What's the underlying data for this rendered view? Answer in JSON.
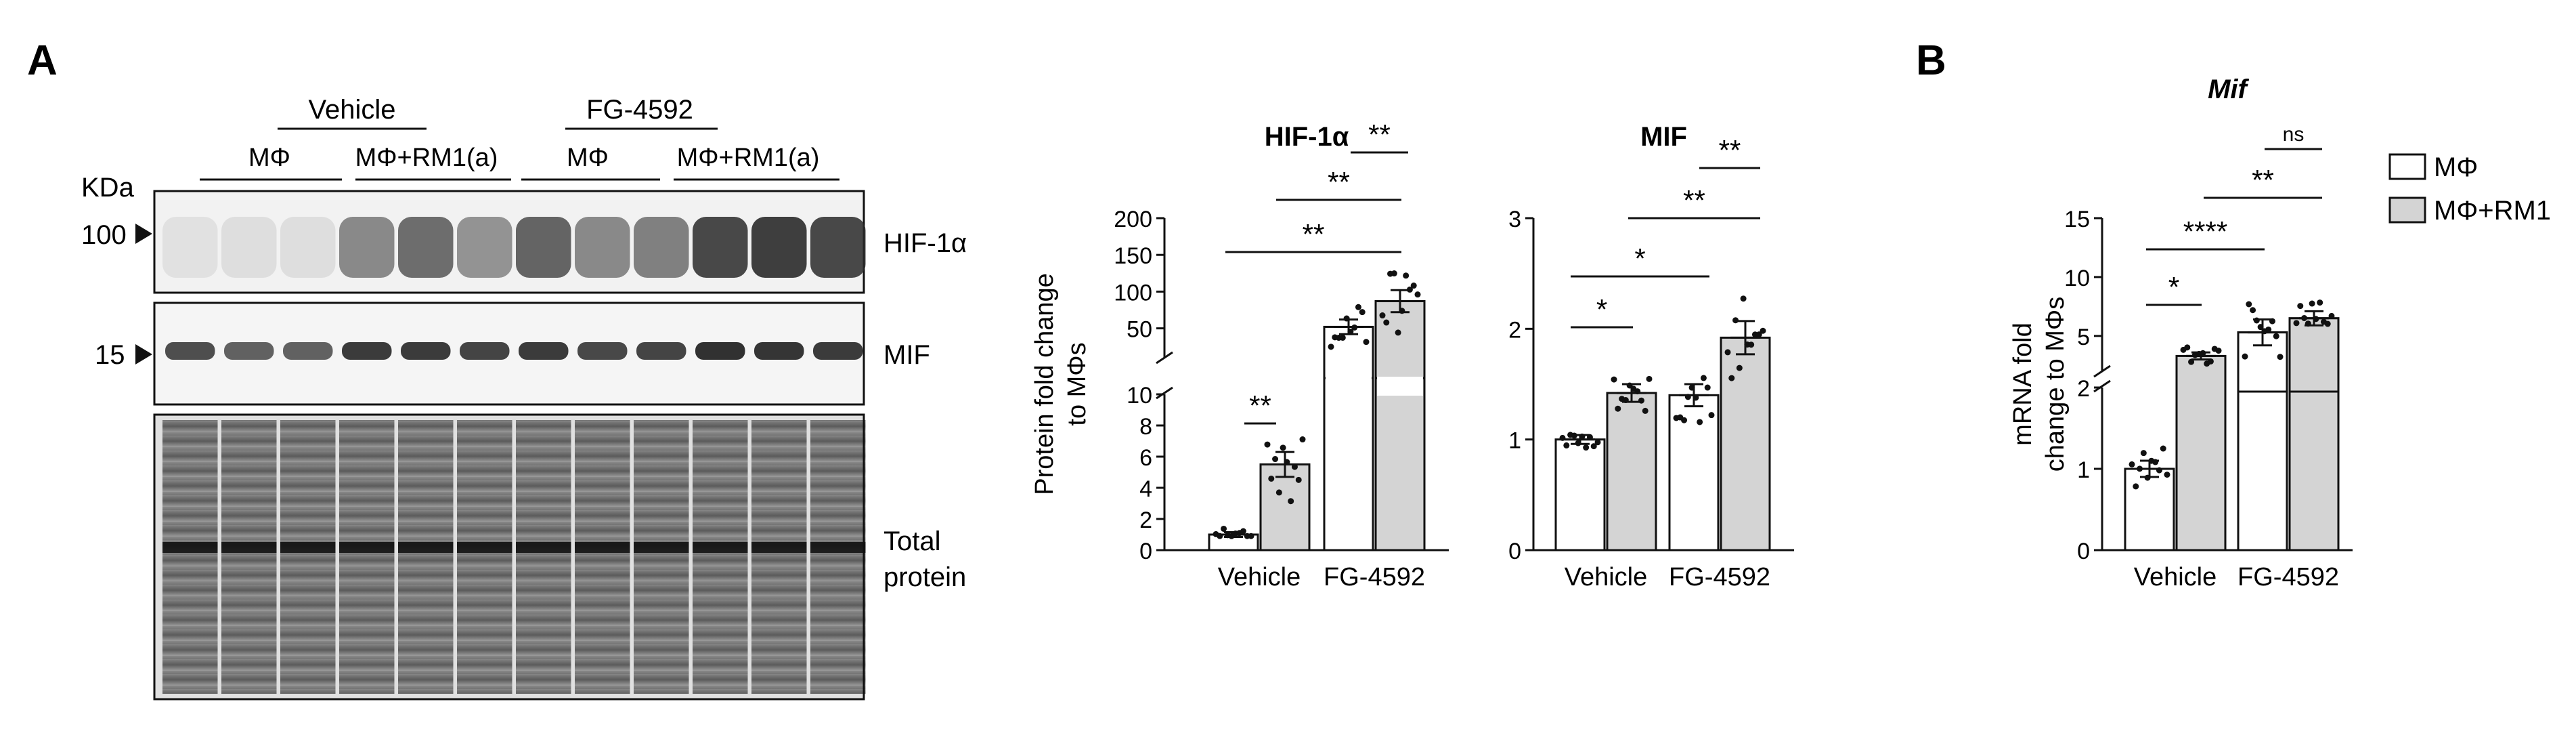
{
  "panel_labels": {
    "a": "A",
    "b": "B"
  },
  "blot": {
    "kda_label": "KDa",
    "marker_100": "100",
    "marker_15": "15",
    "group_vehicle": "Vehicle",
    "group_fg": "FG-4592",
    "lane_mphi": "MΦ",
    "lane_rm1a": "MΦ+RM1(a)",
    "row_hif": "HIF-1α",
    "row_mif": "MIF",
    "row_total_1": "Total",
    "row_total_2": "protein"
  },
  "colors": {
    "bar_mphi": "#ffffff",
    "bar_rm1": "#d4d4d4",
    "stroke": "#111111"
  },
  "legend": {
    "mphi": "MΦ",
    "rm1": "MΦ+RM1"
  },
  "chart_data": [
    {
      "type": "bar",
      "title": "HIF-1α",
      "ylabel": "Protein fold change to MΦs",
      "categories": [
        "Vehicle",
        "FG-4592"
      ],
      "y_axis_break": {
        "lower": [
          0,
          10
        ],
        "upper": [
          10,
          200
        ]
      },
      "yticks_lower": [
        "0",
        "2",
        "4",
        "6",
        "8",
        "10"
      ],
      "yticks_upper": [
        "50",
        "100",
        "150",
        "200"
      ],
      "series": [
        {
          "name": "MΦ",
          "values": [
            1.0,
            52
          ],
          "sem": [
            0.15,
            10
          ]
        },
        {
          "name": "MΦ+RM1",
          "values": [
            5.5,
            87
          ],
          "sem": [
            0.8,
            15
          ]
        }
      ],
      "significance": [
        "**",
        "**",
        "**",
        "**"
      ]
    },
    {
      "type": "bar",
      "title": "MIF",
      "ylabel": "",
      "categories": [
        "Vehicle",
        "FG-4592"
      ],
      "ylim": [
        0,
        3
      ],
      "yticks": [
        "0",
        "1",
        "2",
        "3"
      ],
      "series": [
        {
          "name": "MΦ",
          "values": [
            1.0,
            1.4
          ],
          "sem": [
            0.04,
            0.1
          ]
        },
        {
          "name": "MΦ+RM1",
          "values": [
            1.42,
            1.92
          ],
          "sem": [
            0.08,
            0.15
          ]
        }
      ],
      "significance": [
        "*",
        "*",
        "**",
        "**"
      ]
    },
    {
      "type": "bar",
      "title": "Mif",
      "ylabel": "mRNA fold change to MΦs",
      "categories": [
        "Vehicle",
        "FG-4592"
      ],
      "y_axis_break": {
        "lower": [
          0,
          2
        ],
        "upper": [
          2,
          15
        ]
      },
      "yticks_lower": [
        "0",
        "1",
        "2"
      ],
      "yticks_upper": [
        "5",
        "10",
        "15"
      ],
      "series": [
        {
          "name": "MΦ",
          "values": [
            1.0,
            5.3
          ],
          "sem": [
            0.1,
            1.1
          ]
        },
        {
          "name": "MΦ+RM1",
          "values": [
            3.3,
            6.5
          ],
          "sem": [
            0.3,
            0.6
          ]
        }
      ],
      "significance": [
        "*",
        "****",
        "**",
        "ns"
      ]
    }
  ]
}
